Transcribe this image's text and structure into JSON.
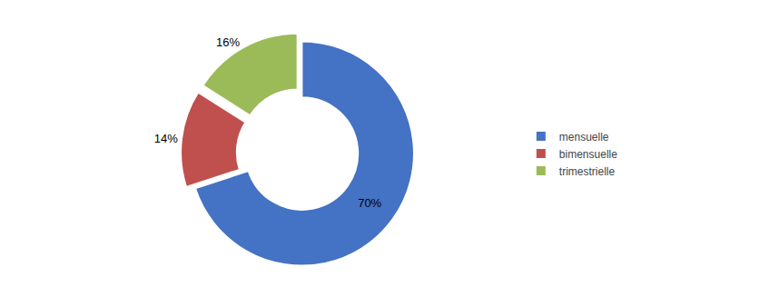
{
  "chart_data": {
    "type": "pie",
    "categories": [
      "mensuelle",
      "bimensuelle",
      "trimestrielle"
    ],
    "values": [
      70,
      14,
      16
    ],
    "value_labels": [
      "70%",
      "14%",
      "16%"
    ],
    "colors": [
      "#4472C4",
      "#C0504D",
      "#9BBB59"
    ],
    "data_labels": true,
    "legend": "right"
  }
}
